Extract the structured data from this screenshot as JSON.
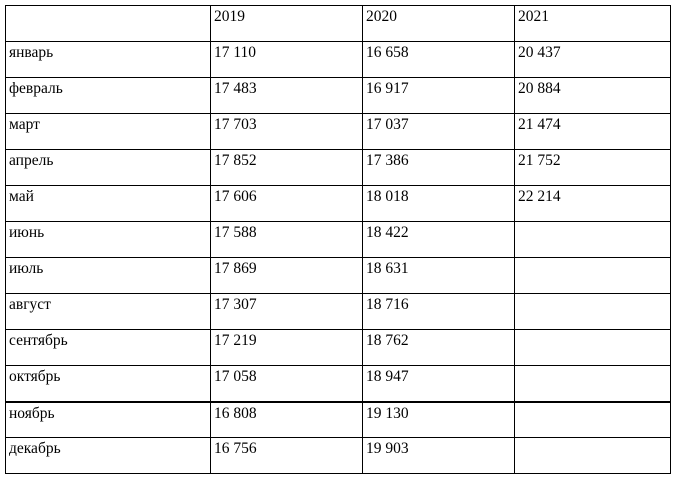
{
  "table": {
    "header": [
      "2019",
      "2020",
      "2021"
    ],
    "rows": [
      [
        "январь",
        "17 110",
        "16 658",
        "20 437"
      ],
      [
        "февраль",
        "17 483",
        "16 917",
        "20 884"
      ],
      [
        "март",
        "17 703",
        "17 037",
        "21 474"
      ],
      [
        "апрель",
        "17 852",
        "17 386",
        "21 752"
      ],
      [
        "май",
        "17 606",
        "18 018",
        "22 214"
      ],
      [
        "июнь",
        "17 588",
        "18 422"
      ],
      [
        "июль",
        "17 869",
        "18 631"
      ],
      [
        "август",
        "17 307",
        "18 716"
      ],
      [
        "сентябрь",
        "17 219",
        "18 762"
      ],
      [
        "октябрь",
        "17 058",
        "18 947"
      ],
      [
        "ноябрь",
        "16 808",
        "19 130"
      ],
      [
        "декабрь",
        "16 756",
        "19 903"
      ]
    ]
  }
}
